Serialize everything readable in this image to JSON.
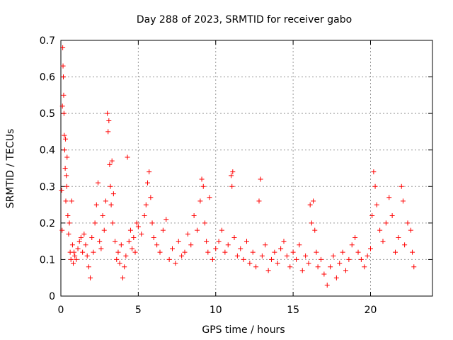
{
  "chart_data": {
    "type": "scatter",
    "title": "Day 288 of 2023, SRMTID for receiver gabo",
    "xlabel": "GPS time / hours",
    "ylabel": "SRMTID / TECUs",
    "xlim": [
      0,
      24
    ],
    "ylim": [
      0,
      0.7
    ],
    "xticks": [
      0,
      5,
      10,
      15,
      20
    ],
    "yticks": [
      0,
      0.1,
      0.2,
      0.3,
      0.4,
      0.5,
      0.6,
      0.7
    ],
    "xtick_labels": [
      "0",
      "5",
      "10",
      "15",
      "20"
    ],
    "ytick_labels": [
      "0",
      "0.1",
      "0.2",
      "0.3",
      "0.4",
      "0.5",
      "0.6",
      "0.7"
    ],
    "grid": true,
    "marker": "+",
    "series": [
      {
        "name": "SRMTID",
        "color": "#ff0000",
        "points": [
          [
            0.05,
            0.29
          ],
          [
            0.08,
            0.18
          ],
          [
            0.1,
            0.52
          ],
          [
            0.12,
            0.68
          ],
          [
            0.14,
            0.63
          ],
          [
            0.16,
            0.6
          ],
          [
            0.18,
            0.55
          ],
          [
            0.2,
            0.5
          ],
          [
            0.22,
            0.44
          ],
          [
            0.25,
            0.4
          ],
          [
            0.28,
            0.35
          ],
          [
            0.3,
            0.43
          ],
          [
            0.32,
            0.26
          ],
          [
            0.35,
            0.33
          ],
          [
            0.38,
            0.3
          ],
          [
            0.4,
            0.38
          ],
          [
            0.45,
            0.22
          ],
          [
            0.5,
            0.17
          ],
          [
            0.55,
            0.2
          ],
          [
            0.6,
            0.12
          ],
          [
            0.65,
            0.1
          ],
          [
            0.7,
            0.26
          ],
          [
            0.75,
            0.14
          ],
          [
            0.8,
            0.09
          ],
          [
            0.85,
            0.12
          ],
          [
            0.9,
            0.11
          ],
          [
            1.0,
            0.1
          ],
          [
            1.1,
            0.13
          ],
          [
            1.2,
            0.15
          ],
          [
            1.3,
            0.16
          ],
          [
            1.4,
            0.12
          ],
          [
            1.5,
            0.17
          ],
          [
            1.6,
            0.14
          ],
          [
            1.7,
            0.11
          ],
          [
            1.8,
            0.08
          ],
          [
            1.9,
            0.05
          ],
          [
            2.0,
            0.16
          ],
          [
            2.1,
            0.12
          ],
          [
            2.2,
            0.2
          ],
          [
            2.3,
            0.25
          ],
          [
            2.4,
            0.31
          ],
          [
            2.5,
            0.15
          ],
          [
            2.6,
            0.13
          ],
          [
            2.7,
            0.22
          ],
          [
            2.8,
            0.18
          ],
          [
            2.9,
            0.26
          ],
          [
            3.0,
            0.5
          ],
          [
            3.05,
            0.45
          ],
          [
            3.1,
            0.48
          ],
          [
            3.15,
            0.36
          ],
          [
            3.2,
            0.3
          ],
          [
            3.25,
            0.25
          ],
          [
            3.3,
            0.37
          ],
          [
            3.35,
            0.2
          ],
          [
            3.4,
            0.28
          ],
          [
            3.5,
            0.15
          ],
          [
            3.6,
            0.1
          ],
          [
            3.7,
            0.12
          ],
          [
            3.8,
            0.09
          ],
          [
            3.9,
            0.14
          ],
          [
            4.0,
            0.05
          ],
          [
            4.1,
            0.08
          ],
          [
            4.2,
            0.11
          ],
          [
            4.3,
            0.38
          ],
          [
            4.4,
            0.15
          ],
          [
            4.5,
            0.18
          ],
          [
            4.6,
            0.13
          ],
          [
            4.7,
            0.16
          ],
          [
            4.8,
            0.12
          ],
          [
            4.9,
            0.2
          ],
          [
            5.0,
            0.19
          ],
          [
            5.2,
            0.17
          ],
          [
            5.4,
            0.22
          ],
          [
            5.5,
            0.25
          ],
          [
            5.6,
            0.31
          ],
          [
            5.7,
            0.34
          ],
          [
            5.8,
            0.27
          ],
          [
            5.9,
            0.2
          ],
          [
            6.0,
            0.16
          ],
          [
            6.2,
            0.14
          ],
          [
            6.4,
            0.12
          ],
          [
            6.6,
            0.18
          ],
          [
            6.8,
            0.21
          ],
          [
            7.0,
            0.1
          ],
          [
            7.2,
            0.13
          ],
          [
            7.4,
            0.09
          ],
          [
            7.6,
            0.15
          ],
          [
            7.8,
            0.11
          ],
          [
            8.0,
            0.12
          ],
          [
            8.2,
            0.17
          ],
          [
            8.4,
            0.14
          ],
          [
            8.6,
            0.22
          ],
          [
            8.8,
            0.18
          ],
          [
            9.0,
            0.26
          ],
          [
            9.1,
            0.32
          ],
          [
            9.2,
            0.3
          ],
          [
            9.3,
            0.2
          ],
          [
            9.4,
            0.15
          ],
          [
            9.5,
            0.12
          ],
          [
            9.6,
            0.27
          ],
          [
            9.8,
            0.1
          ],
          [
            10.0,
            0.13
          ],
          [
            10.2,
            0.15
          ],
          [
            10.4,
            0.18
          ],
          [
            10.6,
            0.12
          ],
          [
            10.8,
            0.14
          ],
          [
            11.0,
            0.33
          ],
          [
            11.05,
            0.3
          ],
          [
            11.1,
            0.34
          ],
          [
            11.2,
            0.16
          ],
          [
            11.4,
            0.11
          ],
          [
            11.6,
            0.13
          ],
          [
            11.8,
            0.1
          ],
          [
            12.0,
            0.15
          ],
          [
            12.2,
            0.09
          ],
          [
            12.4,
            0.12
          ],
          [
            12.6,
            0.08
          ],
          [
            12.8,
            0.26
          ],
          [
            12.9,
            0.32
          ],
          [
            13.0,
            0.11
          ],
          [
            13.2,
            0.14
          ],
          [
            13.4,
            0.07
          ],
          [
            13.6,
            0.1
          ],
          [
            13.8,
            0.12
          ],
          [
            14.0,
            0.09
          ],
          [
            14.2,
            0.13
          ],
          [
            14.4,
            0.15
          ],
          [
            14.6,
            0.11
          ],
          [
            14.8,
            0.08
          ],
          [
            15.0,
            0.12
          ],
          [
            15.2,
            0.1
          ],
          [
            15.4,
            0.14
          ],
          [
            15.6,
            0.07
          ],
          [
            15.8,
            0.11
          ],
          [
            16.0,
            0.09
          ],
          [
            16.1,
            0.25
          ],
          [
            16.2,
            0.2
          ],
          [
            16.3,
            0.26
          ],
          [
            16.4,
            0.18
          ],
          [
            16.5,
            0.12
          ],
          [
            16.6,
            0.08
          ],
          [
            16.8,
            0.1
          ],
          [
            17.0,
            0.06
          ],
          [
            17.2,
            0.03
          ],
          [
            17.4,
            0.08
          ],
          [
            17.6,
            0.11
          ],
          [
            17.8,
            0.05
          ],
          [
            18.0,
            0.09
          ],
          [
            18.2,
            0.12
          ],
          [
            18.4,
            0.07
          ],
          [
            18.6,
            0.1
          ],
          [
            18.8,
            0.14
          ],
          [
            19.0,
            0.16
          ],
          [
            19.2,
            0.12
          ],
          [
            19.4,
            0.1
          ],
          [
            19.6,
            0.08
          ],
          [
            19.8,
            0.11
          ],
          [
            20.0,
            0.13
          ],
          [
            20.1,
            0.22
          ],
          [
            20.2,
            0.34
          ],
          [
            20.3,
            0.3
          ],
          [
            20.4,
            0.25
          ],
          [
            20.6,
            0.18
          ],
          [
            20.8,
            0.15
          ],
          [
            21.0,
            0.2
          ],
          [
            21.2,
            0.27
          ],
          [
            21.4,
            0.22
          ],
          [
            21.6,
            0.12
          ],
          [
            21.8,
            0.16
          ],
          [
            22.0,
            0.3
          ],
          [
            22.1,
            0.26
          ],
          [
            22.2,
            0.14
          ],
          [
            22.4,
            0.2
          ],
          [
            22.6,
            0.18
          ],
          [
            22.7,
            0.12
          ],
          [
            22.8,
            0.08
          ]
        ]
      }
    ]
  }
}
